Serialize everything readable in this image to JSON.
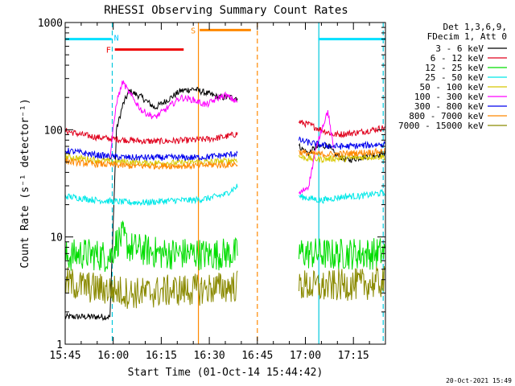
{
  "chart_data": {
    "type": "line",
    "title": "RHESSI Observing Summary Count Rates",
    "xlabel": "Start Time (01-Oct-14 15:44:42)",
    "ylabel": "Count Rate (s⁻¹ detector⁻¹)",
    "y_scale": "log",
    "ylim": [
      1,
      1000
    ],
    "xlim_minutes": [
      0,
      100
    ],
    "x_tick_labels": [
      "15:45",
      "16:00",
      "16:15",
      "16:30",
      "16:45",
      "17:00",
      "17:15"
    ],
    "x_tick_minutes": [
      0,
      15,
      30,
      45,
      60,
      75,
      90
    ],
    "y_tick_labels": [
      "1",
      "10",
      "100",
      "1000"
    ],
    "y_tick_values": [
      1,
      10,
      100,
      1000
    ],
    "legend_header": [
      "Det 1,3,6,9,",
      "FDecim 1, Att 0"
    ],
    "legend_position": "right",
    "timestamp": "20-Oct-2021 15:49",
    "data_gaps_minutes": [
      [
        55,
        72
      ]
    ],
    "series": [
      {
        "name": "3 - 6 keV",
        "color": "#000000",
        "x": [
          0,
          5,
          10,
          14,
          16,
          18,
          20,
          24,
          28,
          32,
          36,
          40,
          44,
          48,
          50,
          54,
          73,
          76,
          78,
          80,
          82,
          84,
          88,
          92,
          96,
          100
        ],
        "y": [
          1.8,
          1.8,
          1.8,
          1.8,
          100,
          170,
          230,
          200,
          160,
          190,
          230,
          240,
          220,
          200,
          200,
          200,
          70,
          60,
          68,
          70,
          72,
          60,
          52,
          55,
          58,
          60
        ]
      },
      {
        "name": "6 - 12 keV",
        "color": "#e0001c",
        "x": [
          0,
          5,
          10,
          15,
          20,
          25,
          30,
          35,
          40,
          45,
          50,
          54,
          73,
          76,
          80,
          84,
          88,
          92,
          96,
          100
        ],
        "y": [
          98,
          90,
          85,
          82,
          80,
          78,
          78,
          79,
          80,
          82,
          86,
          92,
          118,
          112,
          100,
          90,
          92,
          95,
          100,
          105
        ]
      },
      {
        "name": "12 - 25 keV",
        "color": "#00dd00",
        "x": [
          0,
          5,
          10,
          14,
          16,
          18,
          20,
          25,
          30,
          35,
          40,
          45,
          50,
          54,
          73,
          76,
          80,
          84,
          88,
          92,
          96,
          100
        ],
        "y": [
          6.5,
          7,
          6.8,
          6.5,
          9,
          10,
          8,
          7.5,
          7,
          7,
          7,
          6.8,
          7,
          7,
          7.2,
          7,
          7,
          6.8,
          7,
          7,
          7,
          7.2
        ]
      },
      {
        "name": "25 - 50 keV",
        "color": "#00e8e8",
        "x": [
          0,
          5,
          10,
          15,
          20,
          25,
          30,
          35,
          40,
          45,
          50,
          54,
          73,
          76,
          80,
          84,
          88,
          92,
          96,
          100
        ],
        "y": [
          24,
          23,
          22,
          21.5,
          21,
          21,
          21.5,
          22,
          22,
          23,
          25,
          30,
          24,
          23,
          22,
          23,
          24,
          24,
          25,
          26
        ]
      },
      {
        "name": "50 - 100 keV",
        "color": "#d8c800",
        "x": [
          0,
          5,
          10,
          15,
          20,
          25,
          30,
          35,
          40,
          45,
          50,
          54,
          73,
          76,
          80,
          84,
          88,
          92,
          96,
          100
        ],
        "y": [
          56,
          54,
          52,
          51,
          50,
          49,
          49,
          49,
          50,
          50,
          51,
          53,
          56,
          54,
          53,
          54,
          54,
          55,
          56,
          56
        ]
      },
      {
        "name": "100 - 300 keV",
        "color": "#ff00ff",
        "x": [
          14,
          16,
          18,
          20,
          24,
          28,
          32,
          36,
          40,
          44,
          48,
          50,
          54,
          73,
          76,
          78,
          80,
          82,
          84
        ],
        "y": [
          55,
          180,
          280,
          220,
          150,
          130,
          160,
          200,
          190,
          170,
          200,
          210,
          180,
          25,
          30,
          60,
          100,
          150,
          60
        ]
      },
      {
        "name": "300 - 800 keV",
        "color": "#0000ee",
        "x": [
          0,
          5,
          10,
          15,
          20,
          25,
          30,
          35,
          40,
          45,
          50,
          54,
          73,
          76,
          80,
          84,
          88,
          92,
          96,
          100
        ],
        "y": [
          64,
          61,
          58,
          56,
          55,
          55,
          55,
          55,
          55,
          56,
          58,
          60,
          80,
          76,
          72,
          70,
          70,
          71,
          72,
          74
        ]
      },
      {
        "name": "800 - 7000 keV",
        "color": "#ff8800",
        "x": [
          0,
          5,
          10,
          15,
          20,
          25,
          30,
          35,
          40,
          45,
          50,
          54,
          73,
          76,
          80,
          84,
          88,
          92,
          96,
          100
        ],
        "y": [
          51,
          49,
          48,
          47,
          46,
          46,
          46,
          46,
          46,
          47,
          47,
          48,
          62,
          60,
          59,
          59,
          60,
          61,
          62,
          63
        ]
      },
      {
        "name": "7000 - 15000 keV",
        "color": "#8a8a00",
        "x": [
          0,
          5,
          10,
          15,
          20,
          25,
          30,
          35,
          40,
          45,
          50,
          54,
          73,
          76,
          80,
          84,
          88,
          92,
          96,
          100
        ],
        "y": [
          3.8,
          3.5,
          3.3,
          3.2,
          3.0,
          3.0,
          3.1,
          3.2,
          3.2,
          3.3,
          3.4,
          3.5,
          3.6,
          3.5,
          3.4,
          3.5,
          3.6,
          3.6,
          3.7,
          3.8
        ]
      }
    ],
    "flag_bars": [
      {
        "label": "",
        "color": "#00e0ff",
        "y": 700,
        "segments": [
          [
            0,
            14.5
          ],
          [
            79,
            100
          ]
        ]
      },
      {
        "label": "F",
        "color": "#ee0000",
        "y": 560,
        "segments": [
          [
            15.5,
            37
          ]
        ],
        "label_at": 13.5
      },
      {
        "label": "S",
        "color": "#ff8800",
        "y": 850,
        "segments": [
          [
            42,
            58
          ]
        ],
        "label_at": 40
      }
    ],
    "flag_labels": [
      {
        "text": "N",
        "color": "#00c8ff",
        "x": 16,
        "y": 700
      }
    ],
    "vertical_markers": [
      {
        "x": 14.7,
        "color": "#00c8dc",
        "style": "dashed"
      },
      {
        "x": 79.2,
        "color": "#00c8dc",
        "style": "solid"
      },
      {
        "x": 99.3,
        "color": "#00c8dc",
        "style": "dashed"
      },
      {
        "x": 41.6,
        "color": "#ff8800",
        "style": "solid"
      },
      {
        "x": 60.0,
        "color": "#ff8800",
        "style": "dashed"
      }
    ]
  }
}
